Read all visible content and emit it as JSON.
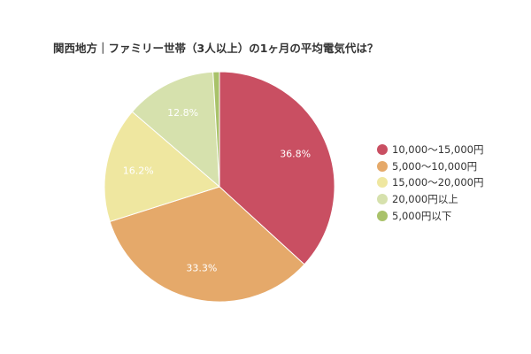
{
  "chart_data": {
    "type": "pie",
    "title": "関西地方｜ファミリー世帯（3人以上）の1ヶ月の平均電気代は？",
    "legend_position": "right",
    "start_angle_deg": 0,
    "direction": "clockwise",
    "slices": [
      {
        "label": "10,000〜15,000円",
        "value": 36.8,
        "display": "36.8%",
        "color": "#c94f62"
      },
      {
        "label": "5,000〜10,000円",
        "value": 33.3,
        "display": "33.3%",
        "color": "#e5a96a"
      },
      {
        "label": "15,000〜20,000円",
        "value": 16.2,
        "display": "16.2%",
        "color": "#efe7a0"
      },
      {
        "label": "20,000円以上",
        "value": 12.8,
        "display": "12.8%",
        "color": "#d6e1ad"
      },
      {
        "label": "5,000円以下",
        "value": 0.9,
        "display": "",
        "color": "#a9c26a"
      }
    ]
  },
  "legend": {
    "items": [
      {
        "label": "10,000〜15,000円",
        "color": "#c94f62"
      },
      {
        "label": "5,000〜10,000円",
        "color": "#e5a96a"
      },
      {
        "label": "15,000〜20,000円",
        "color": "#efe7a0"
      },
      {
        "label": "20,000円以上",
        "color": "#d6e1ad"
      },
      {
        "label": "5,000円以下",
        "color": "#a9c26a"
      }
    ]
  }
}
